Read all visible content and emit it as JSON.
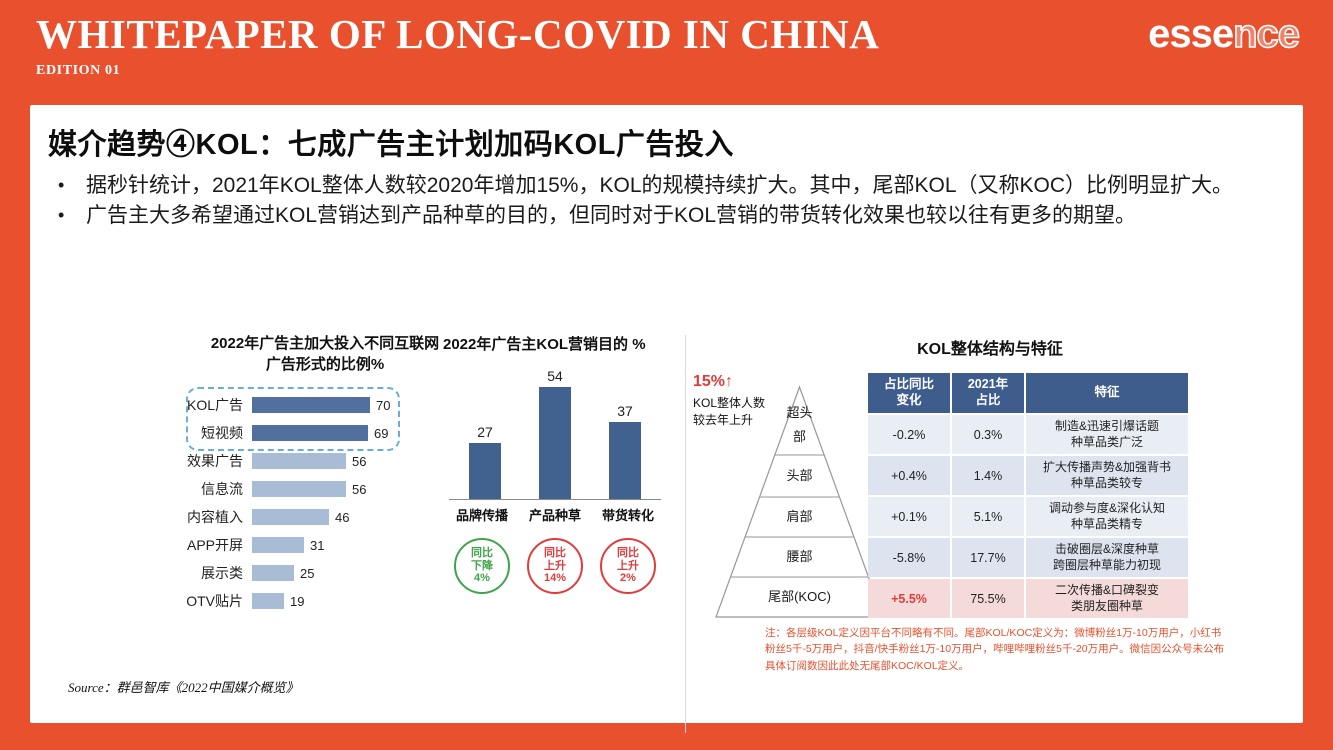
{
  "colors": {
    "background": "#E8502E",
    "bar_dark": "#51709F",
    "bar_light": "#A9BCD6",
    "vbar": "#41618F",
    "table_header_bg": "#3E5C8C",
    "row_highlight": "#F5DADA",
    "green": "#3FA54B",
    "red": "#E23B3B",
    "dashed_box": "#67AEDC",
    "note_text": "#E8502E"
  },
  "header": {
    "title": "WHITEPAPER OF LONG-COVID IN CHINA",
    "edition": "EDITION 01",
    "logo_solid": "esse",
    "logo_outline": "nce"
  },
  "slide": {
    "title": "媒介趋势④KOL：七成广告主计划加码KOL广告投入",
    "bullets": [
      "据秒针统计，2021年KOL整体人数较2020年增加15%，KOL的规模持续扩大。其中，尾部KOL（又称KOC）比例明显扩大。",
      "广告主大多希望通过KOL营销达到产品种草的目的，但同时对于KOL营销的带货转化效果也较以往有更多的期望。"
    ],
    "source": "Source：群邑智库《2022中国媒介概览》"
  },
  "chart_data": [
    {
      "type": "bar",
      "orientation": "horizontal",
      "title": "2022年广告主加大投入不同互联网\n广告形式的比例%",
      "categories": [
        "KOL广告",
        "短视频",
        "效果广告",
        "信息流",
        "内容植入",
        "APP开屏",
        "展示类",
        "OTV贴片"
      ],
      "values": [
        70,
        69,
        56,
        56,
        46,
        31,
        25,
        19
      ],
      "highlighted_categories": [
        "KOL广告",
        "短视频"
      ],
      "xlim": [
        0,
        80
      ]
    },
    {
      "type": "bar",
      "orientation": "vertical",
      "title": "2022年广告主KOL营销目的 %",
      "categories": [
        "品牌传播",
        "产品种草",
        "带货转化"
      ],
      "values": [
        27,
        54,
        37
      ],
      "ylim": [
        0,
        60
      ],
      "badges": [
        {
          "lines": [
            "同比",
            "下降",
            "4%"
          ],
          "trend": "down"
        },
        {
          "lines": [
            "同比",
            "上升",
            "14%"
          ],
          "trend": "up"
        },
        {
          "lines": [
            "同比",
            "上升",
            "2%"
          ],
          "trend": "up"
        }
      ]
    },
    {
      "type": "table",
      "title": "KOL整体结构与特征",
      "annotation": {
        "pct": "15%↑",
        "text": "KOL整体人数\n较去年上升"
      },
      "pyramid_levels": [
        "超头部",
        "头部",
        "肩部",
        "腰部",
        "尾部(KOC)"
      ],
      "headers": [
        "占比同比\n变化",
        "2021年\n占比",
        "特征"
      ],
      "rows": [
        {
          "change": "-0.2%",
          "share": "0.3%",
          "feature": "制造&迅速引爆话题\n种草品类广泛",
          "highlight": false
        },
        {
          "change": "+0.4%",
          "share": "1.4%",
          "feature": "扩大传播声势&加强背书\n种草品类较专",
          "highlight": false
        },
        {
          "change": "+0.1%",
          "share": "5.1%",
          "feature": "调动参与度&深化认知\n种草品类精专",
          "highlight": false
        },
        {
          "change": "-5.8%",
          "share": "17.7%",
          "feature": "击破圈层&深度种草\n跨圈层种草能力初现",
          "highlight": false
        },
        {
          "change": "+5.5%",
          "share": "75.5%",
          "feature": "二次传播&口碑裂变\n类朋友圈种草",
          "highlight": true
        }
      ],
      "note": "注：各层级KOL定义因平台不同略有不同。尾部KOL/KOC定义为：微博粉丝1万-10万用户，小红书粉丝5千-5万用户，抖音/快手粉丝1万-10万用户，哔哩哔哩粉丝5千-20万用户。微信因公众号未公布具体订阅数因此此处无尾部KOC/KOL定义。"
    }
  ]
}
